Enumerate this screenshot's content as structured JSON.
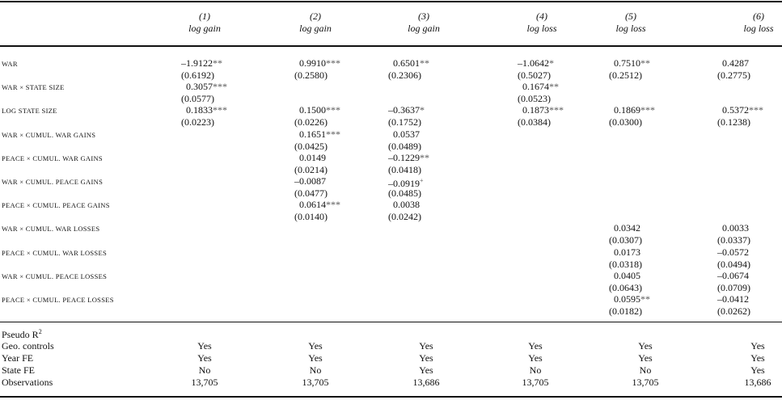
{
  "columns": [
    {
      "number": "(1)",
      "dep_var": "log gain"
    },
    {
      "number": "(2)",
      "dep_var": "log gain"
    },
    {
      "number": "(3)",
      "dep_var": "log gain"
    },
    {
      "number": "(4)",
      "dep_var": "log loss"
    },
    {
      "number": "(5)",
      "dep_var": "log loss"
    },
    {
      "number": "(6)",
      "dep_var": "log loss"
    }
  ],
  "rows": [
    {
      "label": "WAR",
      "cells": [
        {
          "coef": "–1.9122",
          "stars": "**",
          "se": "(0.6192)"
        },
        {
          "coef": "0.9910",
          "stars": "***",
          "se": "(0.2580)"
        },
        {
          "coef": "0.6501",
          "stars": "**",
          "se": "(0.2306)"
        },
        {
          "coef": "–1.0642",
          "stars": "*",
          "se": "(0.5027)"
        },
        {
          "coef": "0.7510",
          "stars": "**",
          "se": "(0.2512)"
        },
        {
          "coef": "0.4287",
          "stars": "",
          "se": "(0.2775)"
        }
      ]
    },
    {
      "label": "WAR × STATE SIZE",
      "cells": [
        {
          "coef": "0.3057",
          "stars": "***",
          "se": "(0.0577)"
        },
        null,
        null,
        {
          "coef": "0.1674",
          "stars": "**",
          "se": "(0.0523)"
        },
        null,
        null
      ]
    },
    {
      "label": "LOG STATE SIZE",
      "cells": [
        {
          "coef": "0.1833",
          "stars": "***",
          "se": "(0.0223)"
        },
        {
          "coef": "0.1500",
          "stars": "***",
          "se": "(0.0226)"
        },
        {
          "coef": "–0.3637",
          "stars": "*",
          "se": "(0.1752)"
        },
        {
          "coef": "0.1873",
          "stars": "***",
          "se": "(0.0384)"
        },
        {
          "coef": "0.1869",
          "stars": "***",
          "se": "(0.0300)"
        },
        {
          "coef": "0.5372",
          "stars": "***",
          "se": "(0.1238)"
        }
      ]
    },
    {
      "label": "WAR × CUMUL. WAR GAINS",
      "cells": [
        null,
        {
          "coef": "0.1651",
          "stars": "***",
          "se": "(0.0425)"
        },
        {
          "coef": "0.0537",
          "stars": "",
          "se": "(0.0489)"
        },
        null,
        null,
        null
      ]
    },
    {
      "label": "PEACE × CUMUL. WAR GAINS",
      "cells": [
        null,
        {
          "coef": "0.0149",
          "stars": "",
          "se": "(0.0214)"
        },
        {
          "coef": "–0.1229",
          "stars": "**",
          "se": "(0.0418)"
        },
        null,
        null,
        null
      ]
    },
    {
      "label": "WAR × CUMUL. PEACE GAINS",
      "cells": [
        null,
        {
          "coef": "–0.0087",
          "stars": "",
          "se": "(0.0477)"
        },
        {
          "coef": "–0.0919",
          "stars": "+",
          "se": "(0.0485)"
        },
        null,
        null,
        null
      ]
    },
    {
      "label": "PEACE × CUMUL. PEACE GAINS",
      "cells": [
        null,
        {
          "coef": "0.0614",
          "stars": "***",
          "se": "(0.0140)"
        },
        {
          "coef": "0.0038",
          "stars": "",
          "se": "(0.0242)"
        },
        null,
        null,
        null
      ]
    },
    {
      "label": "WAR × CUMUL. WAR LOSSES",
      "cells": [
        null,
        null,
        null,
        null,
        {
          "coef": "0.0342",
          "stars": "",
          "se": "(0.0307)"
        },
        {
          "coef": "0.0033",
          "stars": "",
          "se": "(0.0337)"
        }
      ]
    },
    {
      "label": "PEACE × CUMUL. WAR LOSSES",
      "cells": [
        null,
        null,
        null,
        null,
        {
          "coef": "0.0173",
          "stars": "",
          "se": "(0.0318)"
        },
        {
          "coef": "–0.0572",
          "stars": "",
          "se": "(0.0494)"
        }
      ]
    },
    {
      "label": "WAR × CUMUL. PEACE LOSSES",
      "cells": [
        null,
        null,
        null,
        null,
        {
          "coef": "0.0405",
          "stars": "",
          "se": "(0.0643)"
        },
        {
          "coef": "–0.0674",
          "stars": "",
          "se": "(0.0709)"
        }
      ]
    },
    {
      "label": "PEACE × CUMUL. PEACE LOSSES",
      "cells": [
        null,
        null,
        null,
        null,
        {
          "coef": "0.0595",
          "stars": "**",
          "se": "(0.0182)"
        },
        {
          "coef": "–0.0412",
          "stars": "",
          "se": "(0.0262)"
        }
      ]
    }
  ],
  "stats": {
    "pseudo_r2_label": "Pseudo R",
    "pseudo_r2_sup": "2",
    "rows": [
      {
        "label": "Geo. controls",
        "values": [
          "Yes",
          "Yes",
          "Yes",
          "Yes",
          "Yes",
          "Yes"
        ]
      },
      {
        "label": "Year FE",
        "values": [
          "Yes",
          "Yes",
          "Yes",
          "Yes",
          "Yes",
          "Yes"
        ]
      },
      {
        "label": "State FE",
        "values": [
          "No",
          "No",
          "Yes",
          "No",
          "No",
          "Yes"
        ]
      },
      {
        "label": "Observations",
        "values": [
          "13,705",
          "13,705",
          "13,686",
          "13,705",
          "13,705",
          "13,686"
        ]
      }
    ]
  }
}
